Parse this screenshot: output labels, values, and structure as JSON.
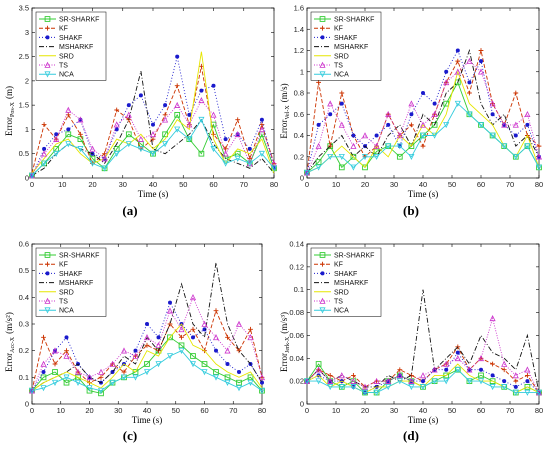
{
  "figure": {
    "panels": [
      {
        "letter": "(a)",
        "xlabel": "Time (s)",
        "ylabel_main": "Error",
        "ylabel_sub": "Pos-X",
        "ylabel_unit": "(m)"
      },
      {
        "letter": "(b)",
        "xlabel": "Time (s)",
        "ylabel_main": "Error",
        "ylabel_sub": "Vel-X",
        "ylabel_unit": "(m/s)"
      },
      {
        "letter": "(c)",
        "xlabel": "Time (s)",
        "ylabel_main": "Error",
        "ylabel_sub": "Acc-X",
        "ylabel_unit": "(m/s²)"
      },
      {
        "letter": "(d)",
        "xlabel": "Time (s)",
        "ylabel_main": "Error",
        "ylabel_sub": "Jerk-X",
        "ylabel_unit": "(m/s³)"
      }
    ]
  },
  "legend": [
    {
      "name": "SR-SHARKF",
      "color": "#33cc33",
      "dash": "",
      "marker": "square"
    },
    {
      "name": "KF",
      "color": "#cc3300",
      "dash": "4,2",
      "marker": "plus"
    },
    {
      "name": "SHAKF",
      "color": "#1a1acc",
      "dash": "1,2",
      "marker": "dot"
    },
    {
      "name": "MSHARKF",
      "color": "#111111",
      "dash": "5,2,1,2",
      "marker": "none"
    },
    {
      "name": "SRD",
      "color": "#e6e600",
      "dash": "",
      "marker": "none"
    },
    {
      "name": "TS",
      "color": "#cc33cc",
      "dash": "1,1.5",
      "marker": "triangle"
    },
    {
      "name": "NCA",
      "color": "#33ccdd",
      "dash": "",
      "marker": "tri-down"
    }
  ],
  "chart_data": [
    {
      "type": "line",
      "title": "",
      "xlabel": "Time (s)",
      "ylabel": "Error Pos-X (m)",
      "xlim": [
        0,
        80
      ],
      "ylim": [
        0,
        3.5
      ],
      "xticks": [
        0,
        10,
        20,
        30,
        40,
        50,
        60,
        70,
        80
      ],
      "yticks": [
        0,
        0.5,
        1,
        1.5,
        2,
        2.5,
        3,
        3.5
      ],
      "ytick_labels": [
        "0",
        "0.5",
        "1",
        "1.5",
        "2",
        "2.5",
        "3",
        "3.5"
      ],
      "x": [
        0,
        4,
        8,
        12,
        16,
        20,
        24,
        28,
        32,
        36,
        40,
        44,
        48,
        52,
        56,
        60,
        64,
        68,
        72,
        76,
        80
      ],
      "series": [
        {
          "name": "SR-SHARKF",
          "values": [
            0.05,
            0.3,
            0.6,
            0.9,
            0.8,
            0.4,
            0.2,
            0.6,
            0.9,
            0.7,
            0.5,
            0.9,
            1.3,
            0.8,
            0.5,
            1.1,
            0.4,
            0.5,
            0.3,
            0.9,
            0.2
          ]
        },
        {
          "name": "KF",
          "values": [
            0.1,
            1.1,
            0.8,
            1.3,
            0.9,
            0.3,
            0.5,
            1.4,
            1.2,
            0.6,
            0.8,
            1.3,
            1.9,
            1.1,
            2.3,
            0.9,
            0.6,
            1.2,
            0.4,
            1.1,
            0.3
          ]
        },
        {
          "name": "SHAKF",
          "values": [
            0.05,
            0.6,
            0.9,
            1.0,
            1.2,
            0.5,
            0.4,
            1.0,
            1.5,
            1.7,
            1.1,
            1.5,
            2.5,
            1.3,
            1.8,
            1.9,
            0.8,
            0.9,
            0.6,
            1.2,
            0.2
          ]
        },
        {
          "name": "MSHARKF",
          "values": [
            0.05,
            0.2,
            0.5,
            0.7,
            0.6,
            0.5,
            0.3,
            0.7,
            1.2,
            2.2,
            0.6,
            0.5,
            0.7,
            0.9,
            1.2,
            0.7,
            0.4,
            0.3,
            0.2,
            0.4,
            0.1
          ]
        },
        {
          "name": "SRD",
          "values": [
            0.1,
            0.4,
            0.7,
            0.8,
            0.5,
            0.3,
            0.4,
            0.8,
            0.7,
            0.9,
            0.6,
            0.8,
            1.2,
            1.0,
            2.6,
            0.8,
            0.3,
            0.6,
            0.5,
            0.8,
            0.1
          ]
        },
        {
          "name": "TS",
          "values": [
            0.05,
            0.5,
            0.8,
            1.4,
            1.2,
            0.6,
            0.4,
            1.1,
            1.3,
            0.8,
            0.9,
            1.2,
            1.5,
            1.1,
            1.6,
            1.3,
            0.5,
            0.9,
            0.3,
            1.0,
            0.3
          ]
        },
        {
          "name": "NCA",
          "values": [
            0.05,
            0.3,
            0.5,
            0.7,
            0.6,
            0.3,
            0.2,
            0.5,
            0.7,
            0.6,
            0.5,
            0.7,
            1.0,
            0.8,
            1.2,
            0.6,
            0.3,
            0.4,
            0.3,
            0.5,
            0.2
          ]
        }
      ]
    },
    {
      "type": "line",
      "title": "",
      "xlabel": "Time (s)",
      "ylabel": "Error Vel-X (m/s)",
      "xlim": [
        0,
        80
      ],
      "ylim": [
        0,
        1.6
      ],
      "xticks": [
        0,
        10,
        20,
        30,
        40,
        50,
        60,
        70,
        80
      ],
      "yticks": [
        0,
        0.2,
        0.4,
        0.6,
        0.8,
        1,
        1.2,
        1.4,
        1.6
      ],
      "ytick_labels": [
        "0",
        "0.2",
        "0.4",
        "0.6",
        "0.8",
        "1",
        "1.2",
        "1.4",
        "1.6"
      ],
      "x": [
        0,
        4,
        8,
        12,
        16,
        20,
        24,
        28,
        32,
        36,
        40,
        44,
        48,
        52,
        56,
        60,
        64,
        68,
        72,
        76,
        80
      ],
      "series": [
        {
          "name": "SR-SHARKF",
          "values": [
            0.05,
            0.15,
            0.3,
            0.1,
            0.2,
            0.1,
            0.25,
            0.3,
            0.2,
            0.3,
            0.4,
            0.5,
            0.7,
            0.9,
            0.6,
            0.5,
            0.4,
            0.3,
            0.2,
            0.3,
            0.1
          ]
        },
        {
          "name": "KF",
          "values": [
            0.05,
            0.9,
            0.3,
            0.8,
            0.4,
            0.2,
            0.3,
            0.6,
            0.4,
            0.5,
            0.3,
            0.6,
            0.9,
            1.1,
            0.8,
            1.2,
            0.7,
            0.5,
            0.8,
            0.4,
            0.3
          ]
        },
        {
          "name": "SHAKF",
          "values": [
            0.05,
            0.5,
            0.6,
            0.7,
            0.4,
            0.3,
            0.4,
            0.5,
            0.3,
            0.6,
            0.8,
            0.7,
            1.0,
            1.2,
            0.9,
            1.1,
            0.6,
            0.5,
            0.4,
            0.5,
            0.2
          ]
        },
        {
          "name": "MSHARKF",
          "values": [
            0.05,
            0.2,
            0.3,
            0.4,
            0.2,
            0.3,
            0.2,
            0.4,
            0.5,
            0.3,
            0.6,
            0.5,
            0.8,
            0.9,
            1.2,
            0.7,
            0.5,
            0.6,
            0.3,
            0.4,
            0.2
          ]
        },
        {
          "name": "SRD",
          "values": [
            0.05,
            0.1,
            0.2,
            0.3,
            0.2,
            0.1,
            0.3,
            0.2,
            0.4,
            0.3,
            0.5,
            0.4,
            0.6,
            1.0,
            0.7,
            0.6,
            0.5,
            0.3,
            0.2,
            0.4,
            0.1
          ]
        },
        {
          "name": "TS",
          "values": [
            0.05,
            0.3,
            0.7,
            0.5,
            0.3,
            0.4,
            0.3,
            0.6,
            0.4,
            0.7,
            0.5,
            0.6,
            0.9,
            1.0,
            1.1,
            1.0,
            0.7,
            0.5,
            0.5,
            0.6,
            0.2
          ]
        },
        {
          "name": "NCA",
          "values": [
            0.05,
            0.1,
            0.2,
            0.2,
            0.1,
            0.2,
            0.2,
            0.3,
            0.3,
            0.2,
            0.4,
            0.4,
            0.5,
            0.7,
            0.6,
            0.5,
            0.4,
            0.3,
            0.2,
            0.3,
            0.1
          ]
        }
      ]
    },
    {
      "type": "line",
      "title": "",
      "xlabel": "Time (s)",
      "ylabel": "Error Acc-X (m/s²)",
      "xlim": [
        0,
        80
      ],
      "ylim": [
        0,
        0.6
      ],
      "xticks": [
        0,
        10,
        20,
        30,
        40,
        50,
        60,
        70,
        80
      ],
      "yticks": [
        0,
        0.1,
        0.2,
        0.3,
        0.4,
        0.5,
        0.6
      ],
      "ytick_labels": [
        "0",
        "0.1",
        "0.2",
        "0.3",
        "0.4",
        "0.5",
        "0.6"
      ],
      "x": [
        0,
        4,
        8,
        12,
        16,
        20,
        24,
        28,
        32,
        36,
        40,
        44,
        48,
        52,
        56,
        60,
        64,
        68,
        72,
        76,
        80
      ],
      "series": [
        {
          "name": "SR-SHARKF",
          "values": [
            0.05,
            0.1,
            0.12,
            0.08,
            0.1,
            0.05,
            0.04,
            0.08,
            0.1,
            0.12,
            0.15,
            0.2,
            0.25,
            0.22,
            0.18,
            0.15,
            0.12,
            0.1,
            0.08,
            0.1,
            0.05
          ]
        },
        {
          "name": "KF",
          "values": [
            0.05,
            0.25,
            0.15,
            0.2,
            0.12,
            0.08,
            0.1,
            0.15,
            0.12,
            0.18,
            0.22,
            0.2,
            0.3,
            0.25,
            0.28,
            0.2,
            0.35,
            0.25,
            0.2,
            0.28,
            0.1
          ]
        },
        {
          "name": "SHAKF",
          "values": [
            0.05,
            0.12,
            0.2,
            0.25,
            0.15,
            0.1,
            0.08,
            0.12,
            0.15,
            0.2,
            0.3,
            0.25,
            0.38,
            0.3,
            0.25,
            0.28,
            0.2,
            0.15,
            0.12,
            0.15,
            0.08
          ]
        },
        {
          "name": "MSHARKF",
          "values": [
            0.05,
            0.08,
            0.1,
            0.12,
            0.15,
            0.1,
            0.08,
            0.12,
            0.18,
            0.15,
            0.25,
            0.2,
            0.3,
            0.45,
            0.3,
            0.25,
            0.53,
            0.3,
            0.2,
            0.15,
            0.08
          ]
        },
        {
          "name": "SRD",
          "values": [
            0.05,
            0.08,
            0.1,
            0.12,
            0.1,
            0.08,
            0.06,
            0.1,
            0.15,
            0.12,
            0.2,
            0.18,
            0.25,
            0.3,
            0.22,
            0.2,
            0.15,
            0.12,
            0.1,
            0.12,
            0.06
          ]
        },
        {
          "name": "TS",
          "values": [
            0.05,
            0.15,
            0.2,
            0.18,
            0.12,
            0.1,
            0.12,
            0.15,
            0.2,
            0.18,
            0.25,
            0.22,
            0.35,
            0.28,
            0.4,
            0.3,
            0.25,
            0.2,
            0.3,
            0.25,
            0.1
          ]
        },
        {
          "name": "NCA",
          "values": [
            0.05,
            0.06,
            0.08,
            0.1,
            0.08,
            0.06,
            0.05,
            0.08,
            0.1,
            0.1,
            0.12,
            0.15,
            0.18,
            0.2,
            0.15,
            0.12,
            0.1,
            0.08,
            0.06,
            0.08,
            0.05
          ]
        }
      ]
    },
    {
      "type": "line",
      "title": "",
      "xlabel": "Time (s)",
      "ylabel": "Error Jerk-X (m/s³)",
      "xlim": [
        0,
        80
      ],
      "ylim": [
        0,
        0.14
      ],
      "xticks": [
        0,
        10,
        20,
        30,
        40,
        50,
        60,
        70,
        80
      ],
      "yticks": [
        0,
        0.02,
        0.04,
        0.06,
        0.08,
        0.1,
        0.12,
        0.14
      ],
      "ytick_labels": [
        "0",
        "0.02",
        "0.04",
        "0.06",
        "0.08",
        "0.1",
        "0.12",
        "0.14"
      ],
      "x": [
        0,
        4,
        8,
        12,
        16,
        20,
        24,
        28,
        32,
        36,
        40,
        44,
        48,
        52,
        56,
        60,
        64,
        68,
        72,
        76,
        80
      ],
      "series": [
        {
          "name": "SR-SHARKF",
          "values": [
            0.02,
            0.035,
            0.02,
            0.015,
            0.02,
            0.01,
            0.01,
            0.02,
            0.025,
            0.02,
            0.015,
            0.02,
            0.025,
            0.03,
            0.02,
            0.025,
            0.02,
            0.015,
            0.01,
            0.015,
            0.01
          ]
        },
        {
          "name": "KF",
          "values": [
            0.02,
            0.03,
            0.025,
            0.02,
            0.025,
            0.015,
            0.02,
            0.02,
            0.03,
            0.025,
            0.02,
            0.03,
            0.035,
            0.05,
            0.03,
            0.04,
            0.035,
            0.03,
            0.02,
            0.025,
            0.01
          ]
        },
        {
          "name": "SHAKF",
          "values": [
            0.02,
            0.025,
            0.02,
            0.02,
            0.015,
            0.01,
            0.015,
            0.02,
            0.025,
            0.02,
            0.02,
            0.03,
            0.03,
            0.045,
            0.03,
            0.03,
            0.025,
            0.02,
            0.015,
            0.02,
            0.01
          ]
        },
        {
          "name": "MSHARKF",
          "values": [
            0.02,
            0.03,
            0.02,
            0.025,
            0.02,
            0.015,
            0.015,
            0.025,
            0.02,
            0.025,
            0.1,
            0.03,
            0.04,
            0.05,
            0.035,
            0.06,
            0.045,
            0.04,
            0.03,
            0.06,
            0.01
          ]
        },
        {
          "name": "SRD",
          "values": [
            0.02,
            0.025,
            0.015,
            0.02,
            0.015,
            0.01,
            0.015,
            0.015,
            0.02,
            0.02,
            0.015,
            0.025,
            0.025,
            0.035,
            0.025,
            0.02,
            0.02,
            0.015,
            0.01,
            0.015,
            0.01
          ]
        },
        {
          "name": "TS",
          "values": [
            0.02,
            0.03,
            0.02,
            0.025,
            0.02,
            0.015,
            0.02,
            0.02,
            0.025,
            0.02,
            0.025,
            0.03,
            0.035,
            0.04,
            0.03,
            0.04,
            0.075,
            0.035,
            0.025,
            0.03,
            0.01
          ]
        },
        {
          "name": "NCA",
          "values": [
            0.02,
            0.02,
            0.015,
            0.015,
            0.015,
            0.01,
            0.01,
            0.015,
            0.02,
            0.015,
            0.015,
            0.02,
            0.02,
            0.03,
            0.02,
            0.02,
            0.015,
            0.015,
            0.01,
            0.01,
            0.01
          ]
        }
      ]
    }
  ]
}
